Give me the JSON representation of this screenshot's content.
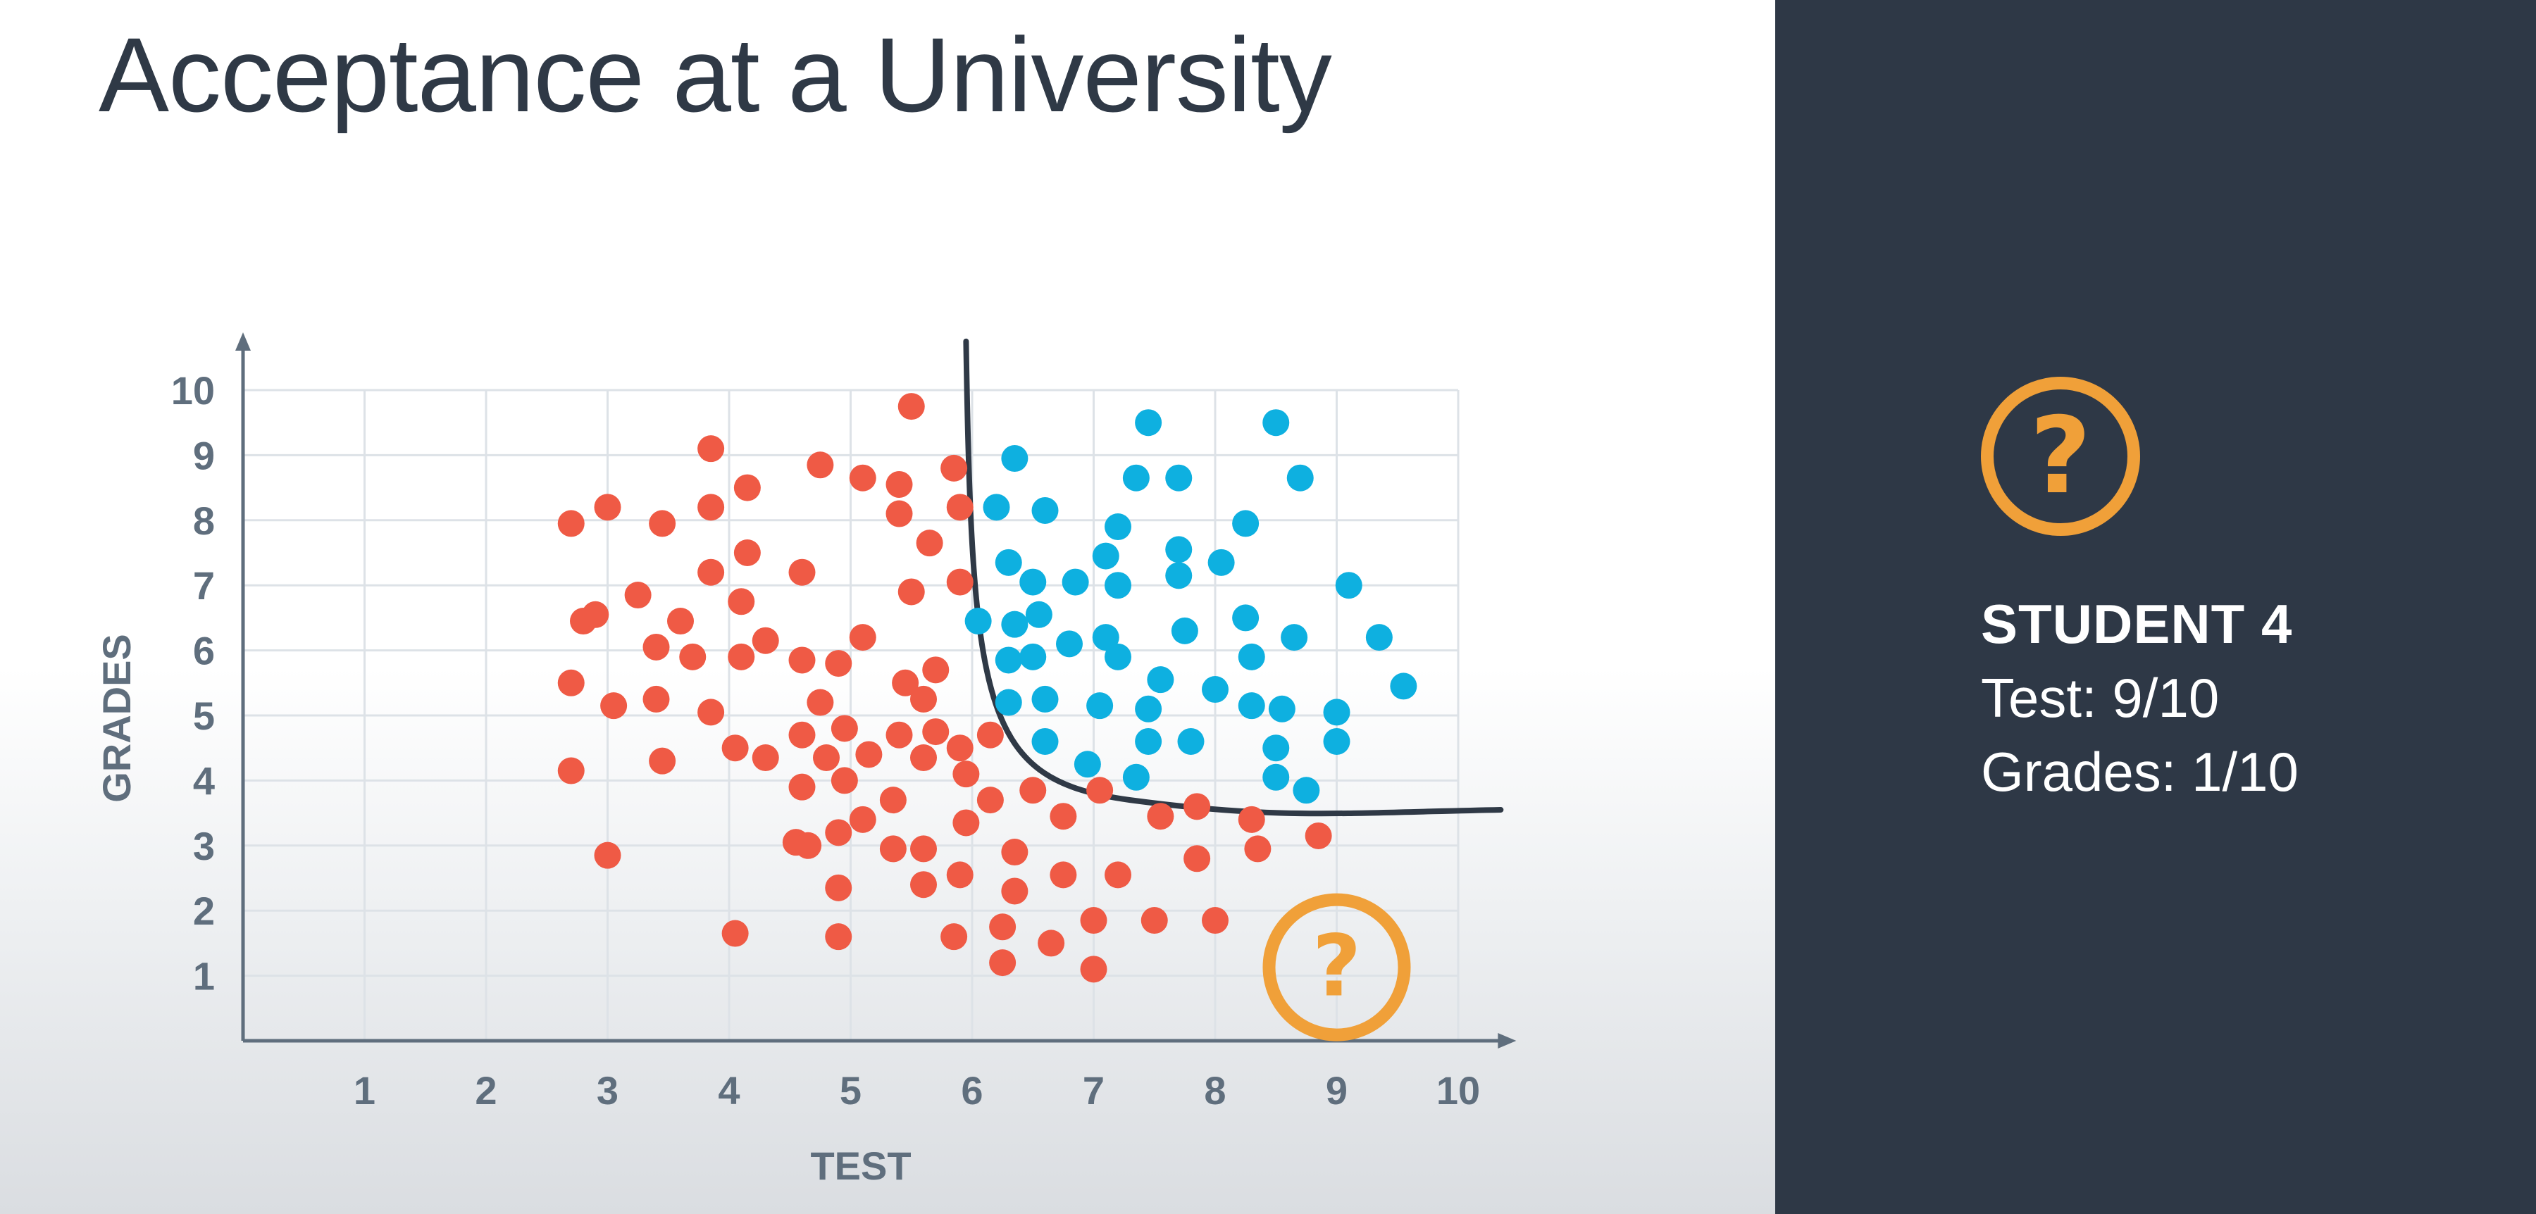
{
  "title": "Acceptance at a University",
  "colors": {
    "rejected": "#ef5a45",
    "accepted": "#0eb0e0",
    "unknown": "#f0a039",
    "axis": "#5f6e7d",
    "boundary": "#2f3946",
    "panel": "#2e3846"
  },
  "icon": "question-mark-icon",
  "student": {
    "heading": "STUDENT 4",
    "test": "Test: 9/10",
    "grades": "Grades: 1/10"
  },
  "chart_data": {
    "type": "scatter",
    "title": "",
    "xlabel": "TEST",
    "ylabel": "GRADES",
    "xlim": [
      0,
      10
    ],
    "ylim": [
      0,
      10
    ],
    "grid": true,
    "xticks": [
      "1",
      "2",
      "3",
      "4",
      "5",
      "6",
      "7",
      "8",
      "9",
      "10"
    ],
    "yticks": [
      "1",
      "2",
      "3",
      "4",
      "5",
      "6",
      "7",
      "8",
      "9",
      "10"
    ],
    "series": [
      {
        "color": "#ef5a45",
        "points": [
          [
            2.7,
            7.95
          ],
          [
            3.0,
            8.2
          ],
          [
            3.45,
            7.95
          ],
          [
            3.85,
            9.1
          ],
          [
            3.85,
            8.2
          ],
          [
            4.15,
            7.5
          ],
          [
            4.15,
            8.5
          ],
          [
            3.85,
            7.2
          ],
          [
            4.1,
            6.75
          ],
          [
            2.8,
            6.45
          ],
          [
            2.9,
            6.55
          ],
          [
            3.25,
            6.85
          ],
          [
            3.6,
            6.45
          ],
          [
            3.4,
            6.05
          ],
          [
            3.7,
            5.9
          ],
          [
            4.1,
            5.9
          ],
          [
            4.3,
            6.15
          ],
          [
            2.7,
            5.5
          ],
          [
            3.05,
            5.15
          ],
          [
            3.4,
            5.25
          ],
          [
            3.85,
            5.05
          ],
          [
            2.7,
            4.15
          ],
          [
            3.45,
            4.3
          ],
          [
            3.0,
            2.85
          ],
          [
            4.05,
            4.5
          ],
          [
            4.3,
            4.35
          ],
          [
            4.05,
            1.65
          ],
          [
            4.6,
            7.2
          ],
          [
            4.75,
            8.85
          ],
          [
            5.1,
            8.65
          ],
          [
            5.4,
            8.55
          ],
          [
            5.4,
            8.1
          ],
          [
            5.5,
            9.75
          ],
          [
            5.85,
            8.8
          ],
          [
            5.9,
            8.2
          ],
          [
            5.65,
            7.65
          ],
          [
            5.5,
            6.9
          ],
          [
            5.9,
            7.05
          ],
          [
            5.1,
            6.2
          ],
          [
            4.6,
            5.85
          ],
          [
            4.9,
            5.8
          ],
          [
            5.45,
            5.5
          ],
          [
            5.6,
            5.25
          ],
          [
            5.7,
            5.7
          ],
          [
            4.75,
            5.2
          ],
          [
            4.6,
            4.7
          ],
          [
            4.8,
            4.35
          ],
          [
            4.95,
            4.8
          ],
          [
            4.6,
            3.9
          ],
          [
            4.95,
            4.0
          ],
          [
            5.15,
            4.4
          ],
          [
            5.4,
            4.7
          ],
          [
            5.6,
            4.35
          ],
          [
            5.7,
            4.75
          ],
          [
            5.9,
            4.5
          ],
          [
            5.95,
            4.1
          ],
          [
            6.15,
            4.7
          ],
          [
            5.35,
            3.7
          ],
          [
            5.1,
            3.4
          ],
          [
            4.55,
            3.05
          ],
          [
            4.65,
            3.0
          ],
          [
            4.9,
            3.2
          ],
          [
            5.35,
            2.95
          ],
          [
            5.6,
            2.95
          ],
          [
            6.15,
            3.7
          ],
          [
            5.95,
            3.35
          ],
          [
            4.9,
            2.35
          ],
          [
            5.6,
            2.4
          ],
          [
            5.9,
            2.55
          ],
          [
            6.35,
            2.3
          ],
          [
            6.35,
            2.9
          ],
          [
            6.5,
            3.85
          ],
          [
            6.75,
            3.45
          ],
          [
            6.75,
            2.55
          ],
          [
            7.05,
            3.85
          ],
          [
            7.2,
            2.55
          ],
          [
            4.9,
            1.6
          ],
          [
            5.85,
            1.6
          ],
          [
            6.25,
            1.75
          ],
          [
            6.25,
            1.2
          ],
          [
            6.65,
            1.5
          ],
          [
            7.0,
            1.85
          ],
          [
            7.0,
            1.1
          ],
          [
            7.5,
            1.85
          ],
          [
            7.55,
            3.45
          ],
          [
            7.85,
            3.6
          ],
          [
            8.3,
            3.4
          ],
          [
            8.35,
            2.95
          ],
          [
            7.85,
            2.8
          ],
          [
            8.0,
            1.85
          ],
          [
            8.85,
            3.15
          ]
        ]
      },
      {
        "color": "#0eb0e0",
        "points": [
          [
            7.45,
            9.5
          ],
          [
            8.5,
            9.5
          ],
          [
            6.35,
            8.95
          ],
          [
            7.35,
            8.65
          ],
          [
            7.7,
            8.65
          ],
          [
            8.7,
            8.65
          ],
          [
            6.2,
            8.2
          ],
          [
            6.6,
            8.15
          ],
          [
            7.2,
            7.9
          ],
          [
            8.25,
            7.95
          ],
          [
            6.3,
            7.35
          ],
          [
            6.5,
            7.05
          ],
          [
            6.85,
            7.05
          ],
          [
            7.1,
            7.45
          ],
          [
            7.2,
            7.0
          ],
          [
            7.7,
            7.55
          ],
          [
            7.7,
            7.15
          ],
          [
            8.05,
            7.35
          ],
          [
            9.1,
            7.0
          ],
          [
            6.05,
            6.45
          ],
          [
            6.35,
            6.4
          ],
          [
            6.55,
            6.55
          ],
          [
            6.8,
            6.1
          ],
          [
            7.1,
            6.2
          ],
          [
            7.2,
            5.9
          ],
          [
            7.75,
            6.3
          ],
          [
            8.25,
            6.5
          ],
          [
            8.65,
            6.2
          ],
          [
            9.35,
            6.2
          ],
          [
            6.3,
            5.85
          ],
          [
            6.5,
            5.9
          ],
          [
            6.3,
            5.2
          ],
          [
            6.6,
            5.25
          ],
          [
            7.05,
            5.15
          ],
          [
            7.55,
            5.55
          ],
          [
            7.45,
            5.1
          ],
          [
            8.0,
            5.4
          ],
          [
            8.3,
            5.15
          ],
          [
            8.3,
            5.9
          ],
          [
            8.55,
            5.1
          ],
          [
            9.0,
            5.05
          ],
          [
            9.55,
            5.45
          ],
          [
            6.6,
            4.6
          ],
          [
            6.95,
            4.25
          ],
          [
            7.45,
            4.6
          ],
          [
            7.8,
            4.6
          ],
          [
            7.35,
            4.05
          ],
          [
            8.5,
            4.5
          ],
          [
            8.5,
            4.05
          ],
          [
            8.75,
            3.85
          ],
          [
            9.0,
            4.6
          ]
        ]
      },
      {
        "color": "#f0a039",
        "points": [
          [
            9.0,
            1.0
          ]
        ]
      }
    ],
    "annotations": [
      "?"
    ]
  }
}
